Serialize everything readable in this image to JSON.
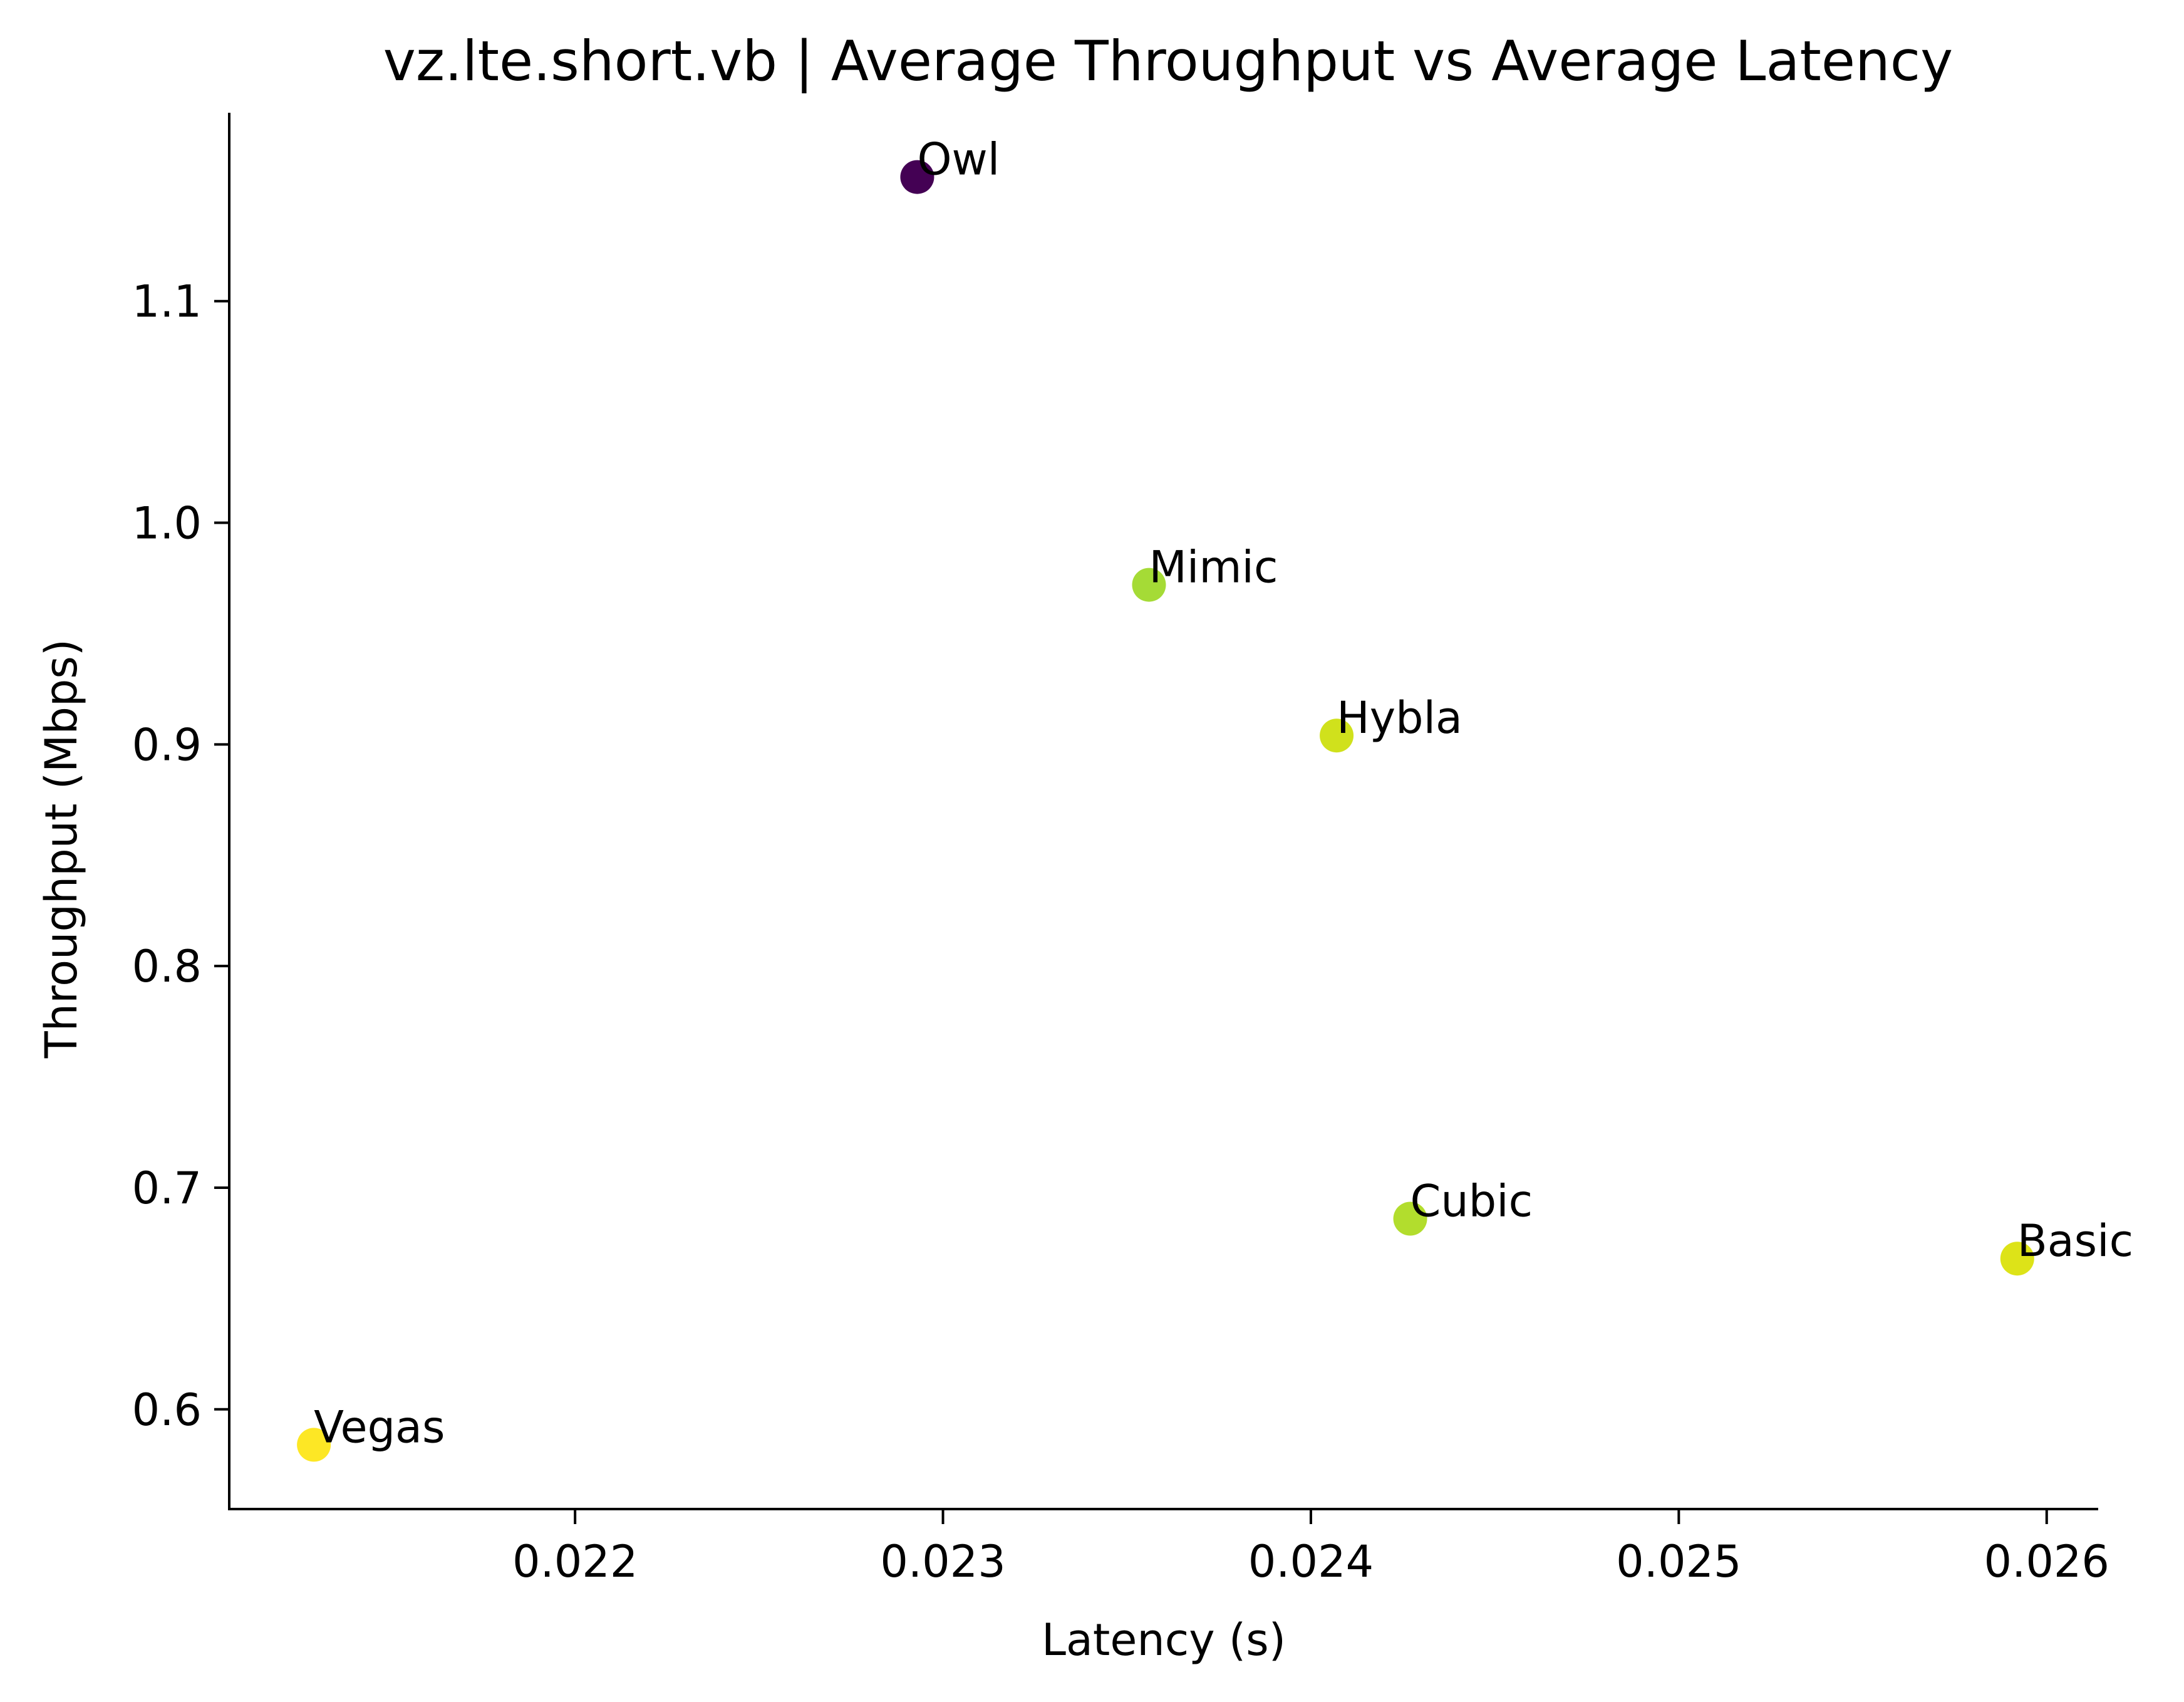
{
  "chart_data": {
    "type": "scatter",
    "title": "vz.lte.short.vb | Average Throughput vs Average Latency",
    "xlabel": "Latency (s)",
    "ylabel": "Throughput (Mbps)",
    "xlim": [
      0.02106,
      0.02614
    ],
    "ylim": [
      0.555,
      1.185
    ],
    "xticks": [
      0.022,
      0.023,
      0.024,
      0.025,
      0.026
    ],
    "xtick_labels": [
      "0.022",
      "0.023",
      "0.024",
      "0.025",
      "0.026"
    ],
    "yticks": [
      0.6,
      0.7,
      0.8,
      0.9,
      1.0,
      1.1
    ],
    "ytick_labels": [
      "0.6",
      "0.7",
      "0.8",
      "0.9",
      "1.0",
      "1.1"
    ],
    "grid": false,
    "legend": "none",
    "colormap": "viridis",
    "points": [
      {
        "label": "Owl",
        "x": 0.02293,
        "y": 1.156,
        "color": "#440154"
      },
      {
        "label": "Mimic",
        "x": 0.02356,
        "y": 0.972,
        "color": "#a5db36"
      },
      {
        "label": "Hybla",
        "x": 0.02407,
        "y": 0.904,
        "color": "#d0e11c"
      },
      {
        "label": "Cubic",
        "x": 0.02427,
        "y": 0.686,
        "color": "#b2dd2d"
      },
      {
        "label": "Basic",
        "x": 0.02592,
        "y": 0.668,
        "color": "#dde318"
      },
      {
        "label": "Vegas",
        "x": 0.02129,
        "y": 0.584,
        "color": "#fde725"
      }
    ]
  }
}
